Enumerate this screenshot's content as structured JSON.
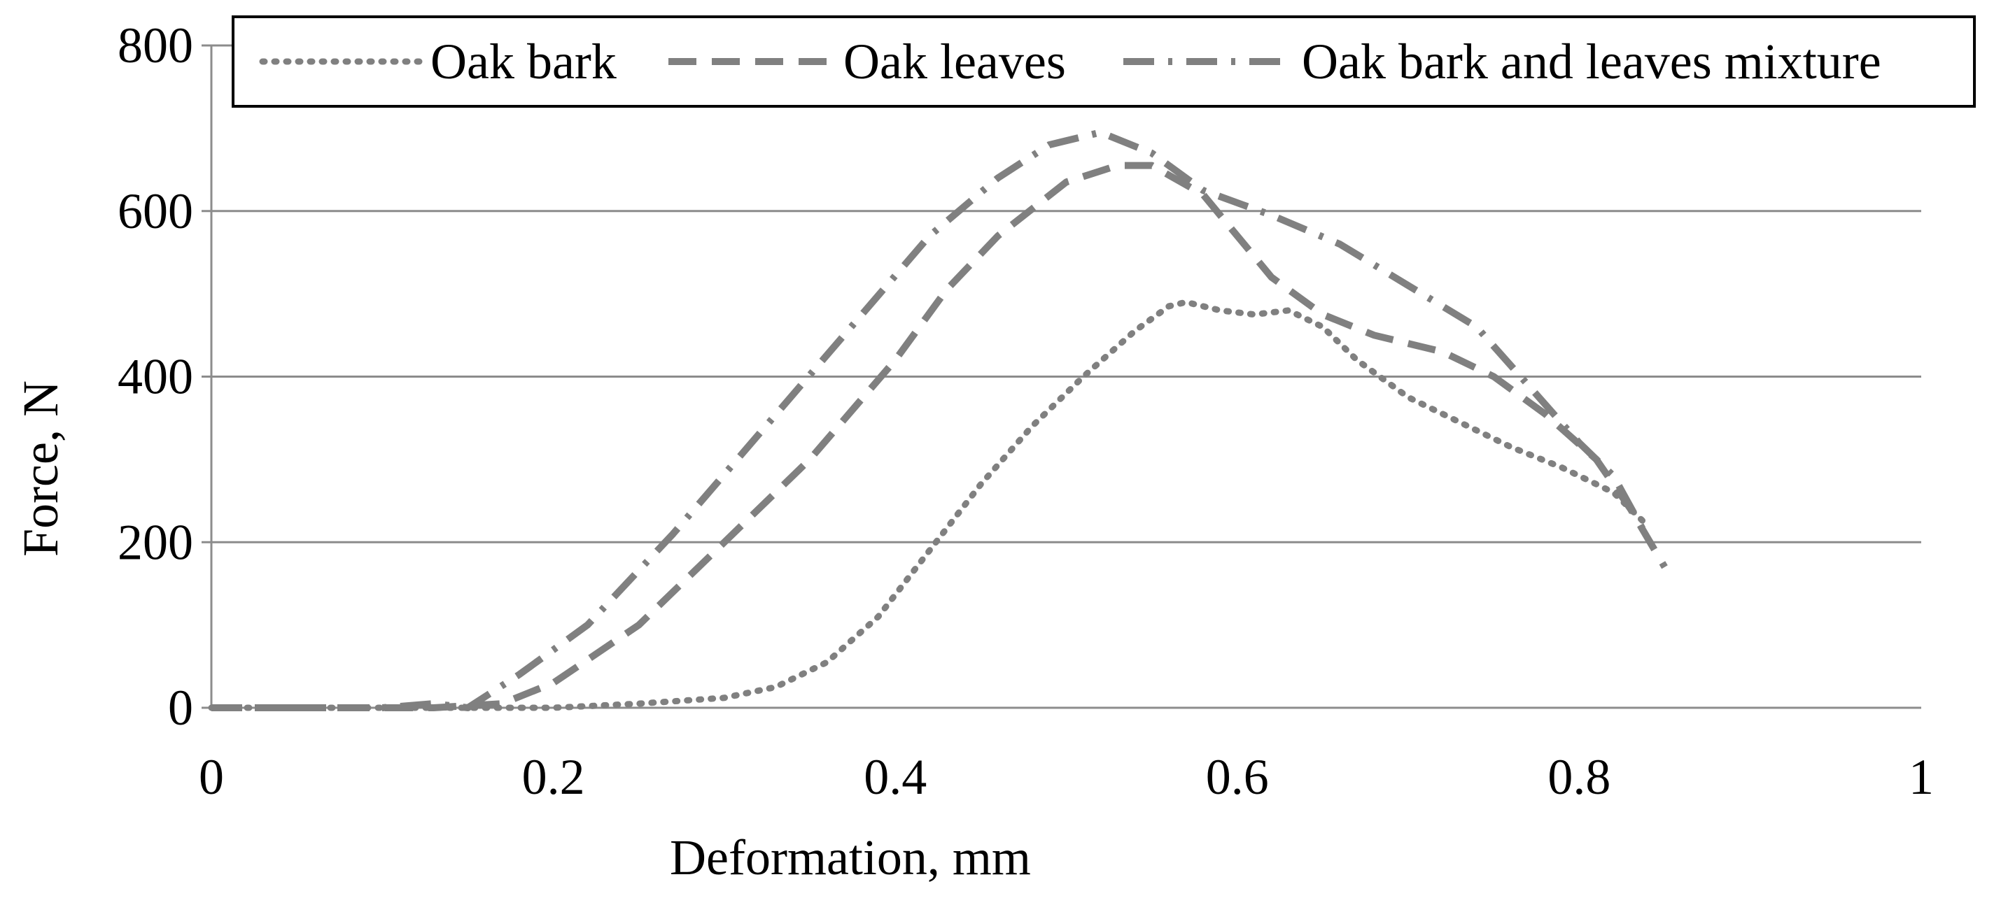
{
  "chart_data": {
    "type": "line",
    "title": "",
    "xlabel": "Deformation, mm",
    "ylabel": "Force, N",
    "xlim": [
      0,
      1
    ],
    "ylim": [
      0,
      800
    ],
    "x_ticks": [
      0,
      0.2,
      0.4,
      0.6,
      0.8,
      1
    ],
    "x_tick_labels": [
      "0",
      "0.2",
      "0.4",
      "0.6",
      "0.8",
      "1"
    ],
    "y_ticks": [
      0,
      200,
      400,
      600,
      800
    ],
    "y_tick_labels": [
      "0",
      "200",
      "400",
      "600",
      "800"
    ],
    "grid": "horizontal",
    "legend_position": "top",
    "series_color": "#808080",
    "series": [
      {
        "name": "Oak bark",
        "style": "dotted",
        "x": [
          0,
          0.1,
          0.2,
          0.25,
          0.3,
          0.33,
          0.36,
          0.39,
          0.42,
          0.45,
          0.48,
          0.51,
          0.54,
          0.56,
          0.57,
          0.59,
          0.61,
          0.63,
          0.65,
          0.67,
          0.7,
          0.73,
          0.76,
          0.79,
          0.82,
          0.84
        ],
        "y": [
          0,
          0,
          0,
          5,
          12,
          25,
          55,
          110,
          190,
          270,
          340,
          400,
          455,
          485,
          490,
          480,
          475,
          480,
          460,
          420,
          375,
          345,
          315,
          290,
          260,
          220
        ]
      },
      {
        "name": "Oak leaves",
        "style": "dashed",
        "x": [
          0,
          0.1,
          0.13,
          0.17,
          0.2,
          0.25,
          0.3,
          0.35,
          0.4,
          0.43,
          0.46,
          0.5,
          0.53,
          0.55,
          0.58,
          0.6,
          0.62,
          0.65,
          0.68,
          0.72,
          0.75,
          0.78,
          0.81,
          0.83,
          0.85
        ],
        "y": [
          0,
          0,
          0,
          5,
          30,
          100,
          200,
          300,
          420,
          505,
          570,
          635,
          655,
          655,
          620,
          570,
          520,
          475,
          450,
          430,
          400,
          355,
          300,
          240,
          170
        ]
      },
      {
        "name": "Oak bark and leaves mixture",
        "style": "dash-dot",
        "x": [
          0,
          0.1,
          0.13,
          0.15,
          0.18,
          0.22,
          0.27,
          0.32,
          0.37,
          0.42,
          0.46,
          0.49,
          0.52,
          0.55,
          0.58,
          0.62,
          0.66,
          0.7,
          0.74,
          0.77,
          0.8,
          0.82,
          0.84
        ],
        "y": [
          0,
          0,
          5,
          0,
          40,
          100,
          210,
          330,
          450,
          570,
          640,
          680,
          695,
          670,
          625,
          595,
          560,
          510,
          460,
          390,
          320,
          280,
          205
        ]
      }
    ]
  }
}
